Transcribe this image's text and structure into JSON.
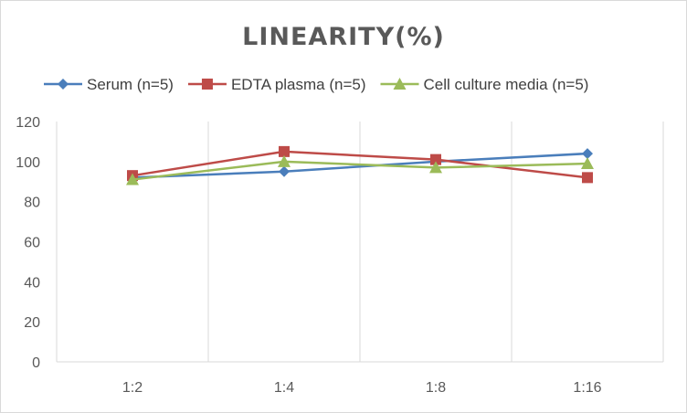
{
  "chart_data": {
    "type": "line",
    "title": "LINEARITY(%)",
    "xlabel": "",
    "ylabel": "",
    "categories": [
      "1:2",
      "1:4",
      "1:8",
      "1:16"
    ],
    "ylim": [
      0,
      120
    ],
    "yticks": [
      0,
      20,
      40,
      60,
      80,
      100,
      120
    ],
    "grid": "vertical",
    "legend_position": "top",
    "series": [
      {
        "name": "Serum (n=5)",
        "values": [
          92,
          95,
          100,
          104
        ],
        "color": "#4a7ebb",
        "marker": "diamond"
      },
      {
        "name": "EDTA plasma (n=5)",
        "values": [
          93,
          105,
          101,
          92
        ],
        "color": "#be4b48",
        "marker": "square"
      },
      {
        "name": "Cell culture media (n=5)",
        "values": [
          91,
          100,
          97,
          99
        ],
        "color": "#9bbb59",
        "marker": "triangle"
      }
    ]
  }
}
